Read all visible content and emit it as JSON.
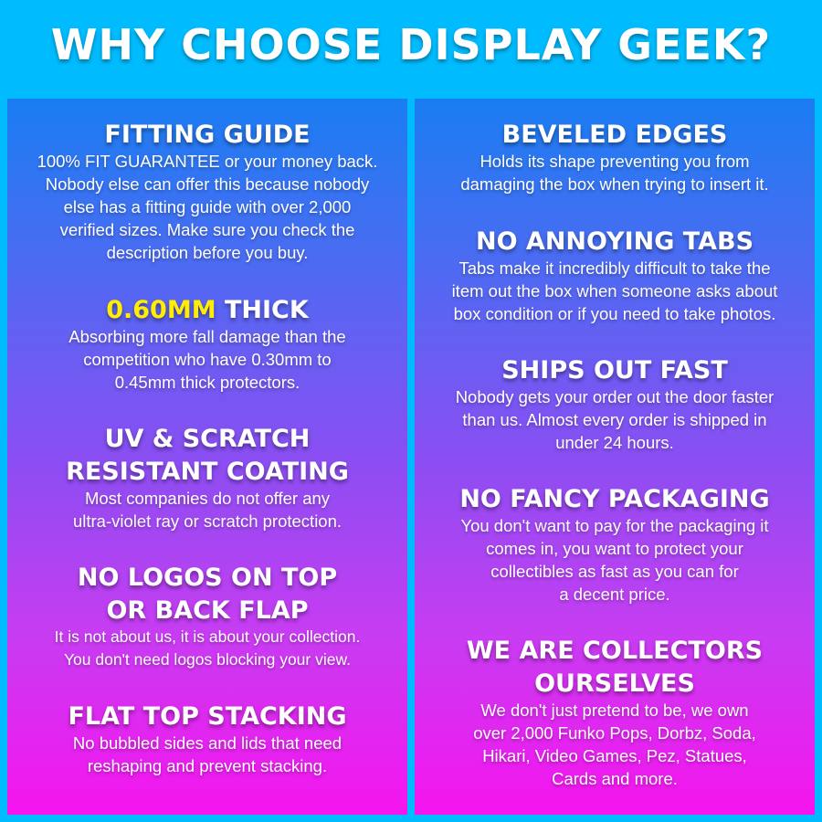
{
  "title": "WHY CHOOSE DISPLAY GEEK?",
  "colors": {
    "background": "#00bcff",
    "highlight": "#ffee00",
    "gradient_top": "#1a7df2",
    "gradient_bottom": "#f614ee"
  },
  "left": [
    {
      "heading": "FITTING GUIDE",
      "body": "100% FIT GUARANTEE or your money back.\nNobody else can offer this because nobody\nelse has a fitting guide with over 2,000\nverified sizes. Make sure you check the\ndescription before you buy."
    },
    {
      "heading_highlight": "0.60MM",
      "heading": " THICK",
      "body": "Absorbing more fall damage than the\ncompetition who have 0.30mm to\n0.45mm thick protectors."
    },
    {
      "heading": "UV & SCRATCH\nRESISTANT COATING",
      "body": "Most companies do not offer any\nultra-violet ray or scratch protection."
    },
    {
      "heading": "NO LOGOS ON TOP\nOR BACK FLAP",
      "body": "It is not about us, it is about your collection.\nYou don't need logos blocking your view."
    },
    {
      "heading": "FLAT TOP STACKING",
      "body": "No bubbled sides and lids that need\nreshaping and prevent stacking."
    }
  ],
  "right": [
    {
      "heading": "BEVELED EDGES",
      "body": "Holds its shape preventing you from\ndamaging the box when trying to insert it."
    },
    {
      "heading": "NO ANNOYING TABS",
      "body": "Tabs make it incredibly difficult to take the\nitem out the box when someone asks about\nbox condition or if you need to take photos."
    },
    {
      "heading": "SHIPS OUT FAST",
      "body": "Nobody gets your order out the door faster\nthan us. Almost every order is shipped in\nunder 24 hours."
    },
    {
      "heading": "NO FANCY PACKAGING",
      "body": "You don't want to pay for the packaging it\ncomes in, you want to protect your\ncollectibles as fast as you can for\na decent price."
    },
    {
      "heading": "WE ARE COLLECTORS\nOURSELVES",
      "body": "We don't just pretend to be, we own\nover 2,000 Funko Pops, Dorbz, Soda,\nHikari, Video Games, Pez, Statues,\nCards and more."
    }
  ]
}
